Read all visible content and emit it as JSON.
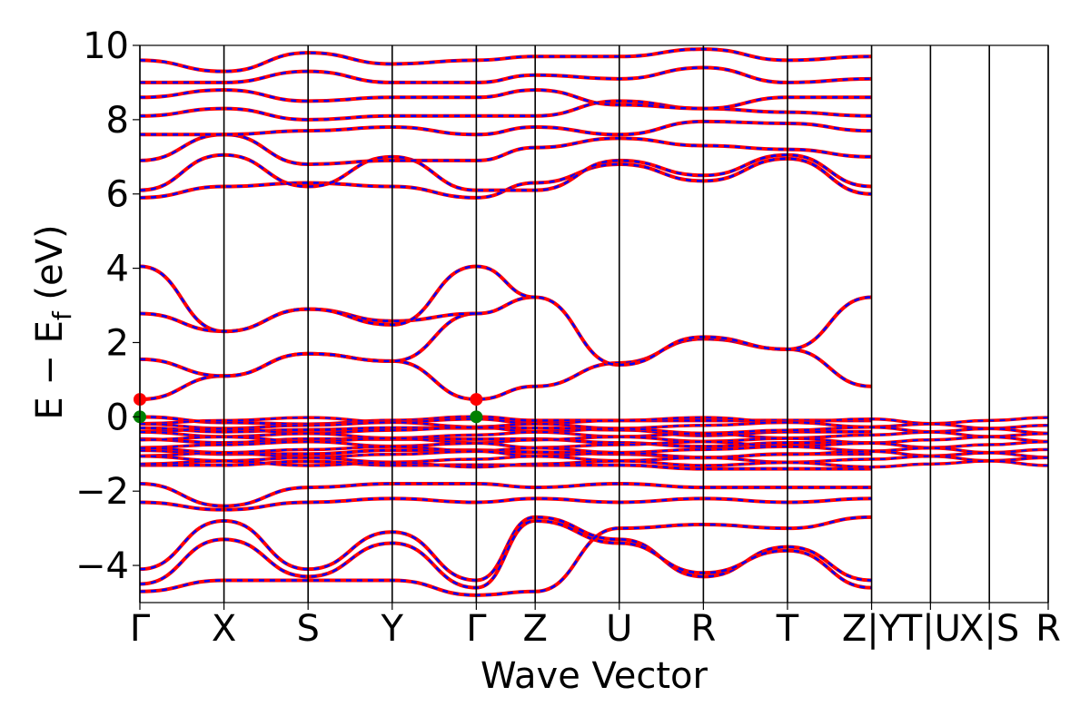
{
  "chart_data": {
    "type": "line",
    "xlabel": "Wave Vector",
    "ylabel_main": "E − E",
    "ylabel_sub": "f",
    "ylabel_unit": "(eV)",
    "ylim": [
      -5,
      10
    ],
    "yticks": [
      -4,
      -2,
      0,
      2,
      4,
      6,
      8,
      10
    ],
    "ytick_labels": [
      "−4",
      "−2",
      "0",
      "2",
      "4",
      "6",
      "8",
      "10"
    ],
    "kpath_labels": [
      "Γ",
      "X",
      "S",
      "Y",
      "Γ",
      "Z",
      "U",
      "R",
      "T",
      "Z|Y",
      "T|U",
      "X|S",
      "R"
    ],
    "kpath_positions": [
      0,
      1,
      2,
      3,
      4,
      4.7,
      5.7,
      6.7,
      7.7,
      8.7,
      9.4,
      10.1,
      10.8
    ],
    "band_gap_markers": [
      {
        "k": 0,
        "energy": 0.47,
        "color": "#ff0000"
      },
      {
        "k": 0,
        "energy": 0.0,
        "color": "#008000"
      },
      {
        "k": 4,
        "energy": 0.47,
        "color": "#ff0000"
      },
      {
        "k": 4,
        "energy": 0.0,
        "color": "#008000"
      }
    ],
    "series": [
      {
        "color_solid": "#ff0000",
        "color_dashed": "#0000ff"
      }
    ],
    "bands": {
      "conduction_samples": [
        {
          "name": "c1",
          "points": [
            [
              0,
              0.47
            ],
            [
              1,
              1.1
            ],
            [
              2,
              1.7
            ],
            [
              3,
              1.5
            ],
            [
              4,
              0.47
            ],
            [
              4.7,
              0.82
            ],
            [
              5.7,
              1.45
            ],
            [
              6.7,
              2.1
            ],
            [
              7.7,
              1.82
            ],
            [
              8.7,
              0.82
            ]
          ]
        },
        {
          "name": "c2",
          "points": [
            [
              0,
              1.55
            ],
            [
              1,
              1.1
            ],
            [
              2,
              1.7
            ],
            [
              3,
              1.5
            ],
            [
              4,
              2.78
            ],
            [
              4.7,
              3.22
            ],
            [
              5.7,
              1.4
            ],
            [
              6.7,
              2.15
            ],
            [
              7.7,
              1.82
            ],
            [
              8.7,
              3.22
            ]
          ]
        },
        {
          "name": "c3",
          "points": [
            [
              0,
              2.78
            ],
            [
              1,
              2.3
            ],
            [
              2,
              2.9
            ],
            [
              3,
              2.58
            ],
            [
              4,
              2.78
            ]
          ]
        },
        {
          "name": "c4",
          "points": [
            [
              0,
              4.05
            ],
            [
              1,
              2.3
            ],
            [
              2,
              2.9
            ],
            [
              3,
              2.48
            ],
            [
              4,
              4.05
            ],
            [
              4.7,
              3.22
            ]
          ]
        },
        {
          "name": "c5",
          "points": [
            [
              0,
              5.9
            ],
            [
              1,
              6.2
            ],
            [
              2,
              6.3
            ],
            [
              3,
              6.2
            ],
            [
              4,
              5.9
            ],
            [
              4.7,
              6.3
            ],
            [
              5.7,
              6.8
            ],
            [
              6.7,
              6.35
            ],
            [
              7.7,
              6.95
            ],
            [
              8.7,
              6.0
            ]
          ]
        },
        {
          "name": "c6",
          "points": [
            [
              0,
              6.1
            ],
            [
              1,
              7.05
            ],
            [
              2,
              6.2
            ],
            [
              3,
              7.0
            ],
            [
              4,
              6.1
            ],
            [
              4.7,
              6.1
            ],
            [
              5.7,
              6.9
            ],
            [
              6.7,
              6.5
            ],
            [
              7.7,
              7.05
            ],
            [
              8.7,
              6.2
            ]
          ]
        },
        {
          "name": "c7",
          "points": [
            [
              0,
              6.9
            ],
            [
              1,
              7.6
            ],
            [
              2,
              6.8
            ],
            [
              3,
              6.9
            ],
            [
              4,
              6.9
            ],
            [
              4.7,
              7.25
            ],
            [
              5.7,
              7.5
            ],
            [
              6.7,
              7.3
            ],
            [
              7.7,
              7.2
            ],
            [
              8.7,
              7.0
            ]
          ]
        },
        {
          "name": "c8",
          "points": [
            [
              0,
              7.6
            ],
            [
              1,
              7.6
            ],
            [
              2,
              7.7
            ],
            [
              3,
              7.8
            ],
            [
              4,
              7.6
            ],
            [
              4.7,
              7.8
            ],
            [
              5.7,
              7.6
            ],
            [
              6.7,
              7.95
            ],
            [
              7.7,
              7.9
            ],
            [
              8.7,
              7.7
            ]
          ]
        },
        {
          "name": "c9",
          "points": [
            [
              0,
              8.1
            ],
            [
              1,
              8.3
            ],
            [
              2,
              8.0
            ],
            [
              3,
              8.1
            ],
            [
              4,
              8.1
            ],
            [
              4.7,
              8.1
            ],
            [
              5.7,
              8.5
            ],
            [
              6.7,
              8.3
            ],
            [
              7.7,
              8.2
            ],
            [
              8.7,
              8.1
            ]
          ]
        },
        {
          "name": "c10",
          "points": [
            [
              0,
              8.6
            ],
            [
              1,
              8.8
            ],
            [
              2,
              8.5
            ],
            [
              3,
              8.6
            ],
            [
              4,
              8.6
            ],
            [
              4.7,
              8.8
            ],
            [
              5.7,
              8.4
            ],
            [
              6.7,
              8.3
            ],
            [
              7.7,
              8.6
            ],
            [
              8.7,
              8.6
            ]
          ]
        },
        {
          "name": "c11",
          "points": [
            [
              0,
              9.0
            ],
            [
              1,
              9.0
            ],
            [
              2,
              9.3
            ],
            [
              3,
              9.0
            ],
            [
              4,
              9.0
            ],
            [
              4.7,
              9.2
            ],
            [
              5.7,
              9.1
            ],
            [
              6.7,
              9.4
            ],
            [
              7.7,
              9.0
            ],
            [
              8.7,
              9.1
            ]
          ]
        },
        {
          "name": "c12",
          "points": [
            [
              0,
              9.6
            ],
            [
              1,
              9.3
            ],
            [
              2,
              9.8
            ],
            [
              3,
              9.5
            ],
            [
              4,
              9.6
            ],
            [
              4.7,
              9.7
            ],
            [
              5.7,
              9.7
            ],
            [
              6.7,
              9.9
            ],
            [
              7.7,
              9.6
            ],
            [
              8.7,
              9.7
            ]
          ]
        }
      ],
      "valence_samples": [
        {
          "name": "v1",
          "points": [
            [
              0,
              0.0
            ],
            [
              1,
              -0.15
            ],
            [
              2,
              -0.2
            ],
            [
              3,
              -0.1
            ],
            [
              4,
              0.0
            ],
            [
              4.7,
              -0.1
            ],
            [
              5.7,
              -0.1
            ],
            [
              6.7,
              -0.1
            ],
            [
              7.7,
              -0.1
            ],
            [
              8.7,
              -0.1
            ]
          ]
        },
        {
          "name": "v2",
          "points": [
            [
              0,
              -0.3
            ],
            [
              1,
              -0.4
            ],
            [
              2,
              -0.35
            ],
            [
              3,
              -0.3
            ],
            [
              4,
              -0.3
            ],
            [
              4.7,
              -0.3
            ],
            [
              5.7,
              -0.35
            ],
            [
              6.7,
              -0.5
            ],
            [
              7.7,
              -0.4
            ],
            [
              8.7,
              -0.4
            ]
          ]
        },
        {
          "name": "v3",
          "points": [
            [
              0,
              -0.6
            ],
            [
              1,
              -0.7
            ],
            [
              2,
              -0.6
            ],
            [
              3,
              -0.6
            ],
            [
              4,
              -0.6
            ],
            [
              4.7,
              -0.6
            ],
            [
              5.7,
              -0.7
            ],
            [
              6.7,
              -0.8
            ],
            [
              7.7,
              -0.7
            ],
            [
              8.7,
              -0.7
            ]
          ]
        },
        {
          "name": "v4",
          "points": [
            [
              0,
              -0.9
            ],
            [
              1,
              -1.0
            ],
            [
              2,
              -1.0
            ],
            [
              3,
              -0.9
            ],
            [
              4,
              -0.9
            ],
            [
              4.7,
              -0.95
            ],
            [
              5.7,
              -1.0
            ],
            [
              6.7,
              -1.1
            ],
            [
              7.7,
              -1.0
            ],
            [
              8.7,
              -1.0
            ]
          ]
        },
        {
          "name": "v5",
          "points": [
            [
              0,
              -1.3
            ],
            [
              1,
              -1.3
            ],
            [
              2,
              -1.2
            ],
            [
              3,
              -1.3
            ],
            [
              4,
              -1.3
            ],
            [
              4.7,
              -1.3
            ],
            [
              5.7,
              -1.3
            ],
            [
              6.7,
              -1.4
            ],
            [
              7.7,
              -1.4
            ],
            [
              8.7,
              -1.4
            ]
          ]
        },
        {
          "name": "v6",
          "points": [
            [
              0,
              -1.8
            ],
            [
              1,
              -2.4
            ],
            [
              2,
              -1.9
            ],
            [
              3,
              -1.8
            ],
            [
              4,
              -1.8
            ],
            [
              4.7,
              -1.9
            ],
            [
              5.7,
              -1.8
            ],
            [
              6.7,
              -1.9
            ],
            [
              7.7,
              -1.9
            ],
            [
              8.7,
              -1.9
            ]
          ]
        },
        {
          "name": "v7",
          "points": [
            [
              0,
              -2.3
            ],
            [
              1,
              -2.5
            ],
            [
              2,
              -2.3
            ],
            [
              3,
              -2.2
            ],
            [
              4,
              -2.3
            ],
            [
              4.7,
              -2.2
            ],
            [
              5.7,
              -2.3
            ],
            [
              6.7,
              -2.2
            ],
            [
              7.7,
              -2.3
            ],
            [
              8.7,
              -2.2
            ]
          ]
        },
        {
          "name": "v8",
          "points": [
            [
              0,
              -4.1
            ],
            [
              1,
              -2.8
            ],
            [
              2,
              -4.1
            ],
            [
              3,
              -3.1
            ],
            [
              4,
              -4.4
            ],
            [
              4.7,
              -2.7
            ],
            [
              5.7,
              -3.3
            ],
            [
              6.7,
              -4.3
            ],
            [
              7.7,
              -3.5
            ],
            [
              8.7,
              -4.4
            ]
          ]
        },
        {
          "name": "v9",
          "points": [
            [
              0,
              -4.5
            ],
            [
              1,
              -3.3
            ],
            [
              2,
              -4.3
            ],
            [
              3,
              -3.4
            ],
            [
              4,
              -4.6
            ],
            [
              4.7,
              -2.8
            ],
            [
              5.7,
              -3.4
            ],
            [
              6.7,
              -4.2
            ],
            [
              7.7,
              -3.6
            ],
            [
              8.7,
              -4.6
            ]
          ]
        },
        {
          "name": "v10",
          "points": [
            [
              0,
              -4.7
            ],
            [
              1,
              -4.4
            ],
            [
              2,
              -4.4
            ],
            [
              3,
              -4.4
            ],
            [
              4,
              -4.8
            ],
            [
              4.7,
              -4.7
            ],
            [
              5.7,
              -3.0
            ],
            [
              6.7,
              -2.9
            ],
            [
              7.7,
              -3.0
            ],
            [
              8.7,
              -2.7
            ]
          ]
        }
      ]
    }
  }
}
